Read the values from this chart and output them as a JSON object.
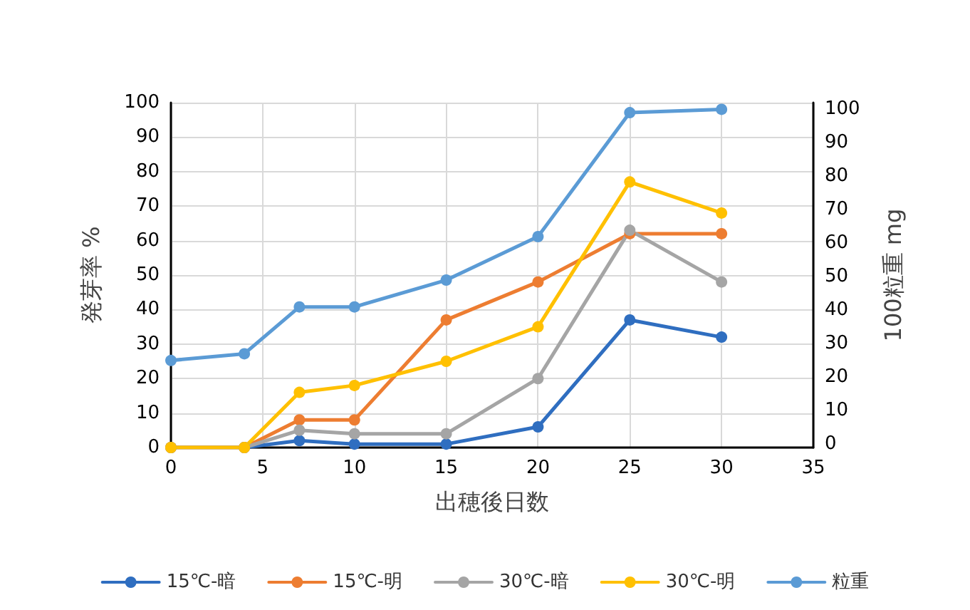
{
  "chart_data": {
    "type": "line",
    "xlabel": "出穂後日数",
    "ylabel": "発芽率 %",
    "y2label": "100粒重 mg",
    "x": [
      0,
      4,
      7,
      10,
      15,
      20,
      25,
      30
    ],
    "xlim": [
      0,
      35
    ],
    "xticks": [
      0,
      5,
      10,
      15,
      20,
      25,
      30,
      35
    ],
    "ylim": [
      0,
      100
    ],
    "yticks": [
      0,
      10,
      20,
      30,
      40,
      50,
      60,
      70,
      80,
      90,
      100
    ],
    "y2lim": [
      -1,
      102
    ],
    "y2ticks": [
      0,
      10,
      20,
      30,
      40,
      50,
      60,
      70,
      80,
      90,
      100
    ],
    "grid": true,
    "legend": "bottom",
    "marker": "circle",
    "line_style": "solid",
    "series": [
      {
        "name": "15℃-暗",
        "color": "#2f6ec0",
        "values": [
          0,
          0,
          2,
          1,
          1,
          6,
          37,
          32
        ]
      },
      {
        "name": "15℃-明",
        "color": "#ed7d31",
        "values": [
          0,
          0,
          8,
          8,
          37,
          48,
          62,
          62
        ]
      },
      {
        "name": "30℃-暗",
        "color": "#a5a5a5",
        "values": [
          0,
          0,
          5,
          4,
          4,
          20,
          63,
          48
        ]
      },
      {
        "name": "30℃-明",
        "color": "#ffc000",
        "values": [
          0,
          0,
          16,
          18,
          25,
          35,
          77,
          68
        ]
      },
      {
        "name": "粒重",
        "color": "#5b9bd5",
        "axis": "y2",
        "values": [
          25,
          27,
          41,
          41,
          49,
          62,
          99,
          100
        ]
      }
    ]
  }
}
